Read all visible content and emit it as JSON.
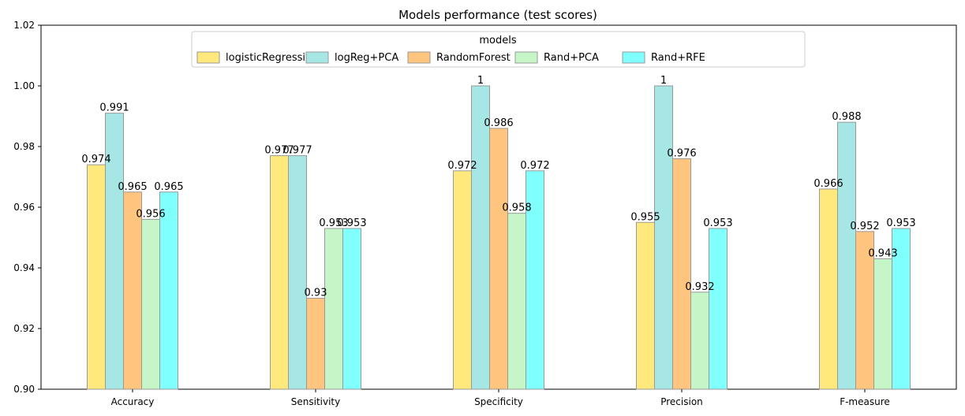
{
  "chart_data": {
    "type": "bar",
    "title": "Models performance (test scores)",
    "xlabel": "",
    "ylabel": "",
    "ylim": [
      0.9,
      1.02
    ],
    "yticks": [
      0.9,
      0.92,
      0.94,
      0.96,
      0.98,
      1.0,
      1.02
    ],
    "ytick_labels": [
      "0.90",
      "0.92",
      "0.94",
      "0.96",
      "0.98",
      "1.00",
      "1.02"
    ],
    "grid": false,
    "legend": {
      "title": "models",
      "placement": "top-center",
      "columns": 5
    },
    "categories": [
      "Accuracy",
      "Sensitivity",
      "Specificity",
      "Precision",
      "F-measure"
    ],
    "series": [
      {
        "name": "logisticRegression",
        "color": "#ffe87c",
        "values": [
          0.974,
          0.977,
          0.972,
          0.955,
          0.966
        ]
      },
      {
        "name": "logReg+PCA",
        "color": "#a6e6e4",
        "values": [
          0.991,
          0.977,
          1,
          1,
          0.988
        ]
      },
      {
        "name": "RandomForest",
        "color": "#ffc47d",
        "values": [
          0.965,
          0.93,
          0.986,
          0.976,
          0.952
        ]
      },
      {
        "name": "Rand+PCA",
        "color": "#c6f5c7",
        "values": [
          0.956,
          0.953,
          0.958,
          0.932,
          0.943
        ]
      },
      {
        "name": "Rand+RFE",
        "color": "#80ffff",
        "values": [
          0.965,
          0.953,
          0.972,
          0.953,
          0.953
        ]
      }
    ],
    "edge_color": "#999999"
  }
}
